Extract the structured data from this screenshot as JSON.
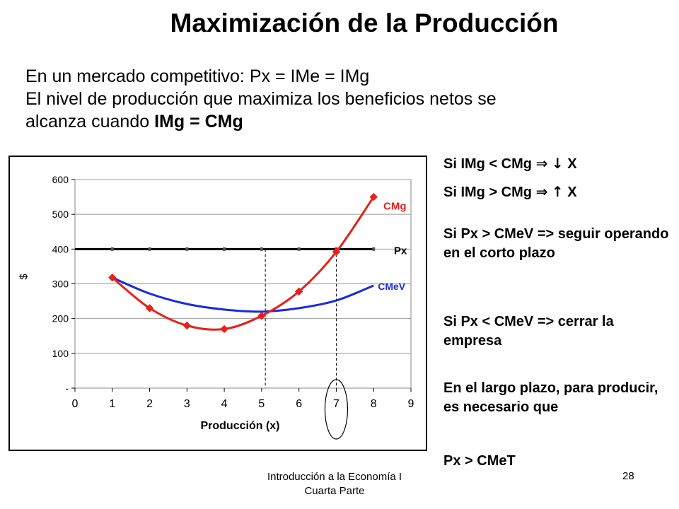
{
  "title": "Maximización de la Producción",
  "intro": {
    "line1": "En un mercado competitivo:  Px = IMe = IMg",
    "line2": "El nivel de producción que maximiza los beneficios netos se",
    "line3_prefix": "alcanza cuando ",
    "line3_bold": "IMg = CMg"
  },
  "rules": {
    "r1_left": "Si IMg < CMg ",
    "r1_arrow": "⇒",
    "r1_dir": "↓",
    "r1_right": " X",
    "r2_left": "Si IMg > CMg ",
    "r2_arrow": "⇒",
    "r2_dir": "↑",
    "r2_right": " X",
    "r3": "Si Px > CMeV => seguir operando en el corto plazo",
    "r4": "Si Px < CMeV => cerrar la empresa",
    "r5": "En el largo plazo, para producir, es necesario que",
    "r6": "Px > CMeT"
  },
  "footer": {
    "line1": "Introducción a la Economía I",
    "line2": "Cuarta Parte",
    "page": "28"
  },
  "chart_data": {
    "type": "line",
    "xlabel": "Producción (x)",
    "ylabel": "$",
    "xlim": [
      0,
      9
    ],
    "ylim": [
      0,
      600
    ],
    "x_ticks": [
      "0",
      "1",
      "2",
      "3",
      "4",
      "5",
      "6",
      "7",
      "8",
      "9"
    ],
    "y_ticks": [
      "-",
      "100",
      "200",
      "300",
      "400",
      "500",
      "600"
    ],
    "grid": "horizontal",
    "series": [
      {
        "name": "CMg",
        "color": "#e8201a",
        "marker": "diamond",
        "x": [
          1,
          2,
          3,
          4,
          5,
          6,
          7,
          8
        ],
        "y": [
          318,
          230,
          180,
          170,
          208,
          278,
          392,
          550
        ]
      },
      {
        "name": "Px",
        "color": "#000000",
        "marker": "dash",
        "x": [
          0,
          1,
          2,
          3,
          4,
          5,
          6,
          7,
          8
        ],
        "y": [
          400,
          400,
          400,
          400,
          400,
          400,
          400,
          400,
          400
        ]
      },
      {
        "name": "CMeV",
        "color": "#1a2bd8",
        "marker": "none",
        "x": [
          1,
          2,
          3,
          4,
          5,
          6,
          7,
          8
        ],
        "y": [
          318,
          272,
          242,
          226,
          220,
          230,
          252,
          295
        ]
      }
    ],
    "vlines": [
      5.1,
      7.0
    ],
    "highlight_x": 7
  }
}
